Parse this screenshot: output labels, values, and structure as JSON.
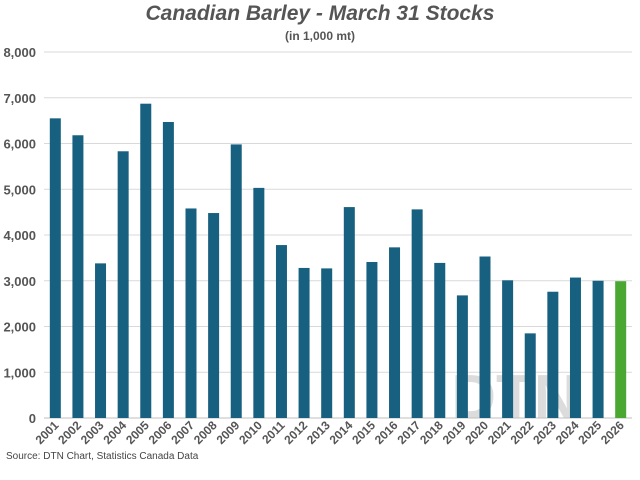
{
  "chart_data": {
    "type": "bar",
    "title": "Canadian Barley - March 31 Stocks",
    "subtitle": "(in 1,000 mt)",
    "source": "Source: DTN Chart, Statistics Canada Data",
    "watermark": "DTN",
    "categories": [
      "2001",
      "2002",
      "2003",
      "2004",
      "2005",
      "2006",
      "2007",
      "2008",
      "2009",
      "2010",
      "2011",
      "2012",
      "2013",
      "2014",
      "2015",
      "2016",
      "2017",
      "2018",
      "2019",
      "2020",
      "2021",
      "2022",
      "2023",
      "2024",
      "2025",
      "2026"
    ],
    "values": [
      6550,
      6180,
      3380,
      5830,
      6870,
      6470,
      4580,
      4480,
      5980,
      5030,
      3780,
      3280,
      3270,
      4610,
      3410,
      3730,
      4560,
      3390,
      2680,
      3530,
      3010,
      1850,
      2760,
      3070,
      3000,
      2990
    ],
    "ylim": [
      0,
      8000
    ],
    "yticks": [
      0,
      1000,
      2000,
      3000,
      4000,
      5000,
      6000,
      7000,
      8000
    ],
    "ytick_labels": [
      "0",
      "1,000",
      "2,000",
      "3,000",
      "4,000",
      "5,000",
      "6,000",
      "7,000",
      "8,000"
    ],
    "grid": true,
    "colors": {
      "bar": "#17607f",
      "highlight": "#4aa832",
      "grid": "#d9d9d9",
      "text": "#555555"
    },
    "highlight_category": "2026"
  }
}
